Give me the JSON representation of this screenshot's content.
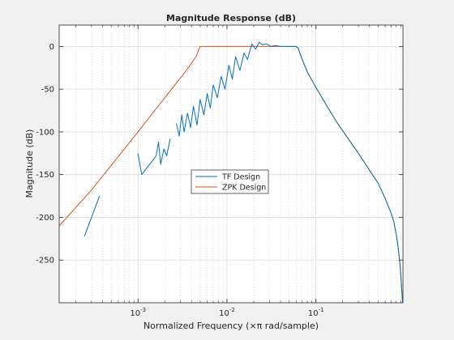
{
  "chart_data": {
    "type": "line",
    "title": "Magnitude Response (dB)",
    "xlabel": "Normalized Frequency (×π rad/sample)",
    "ylabel": "Magnitude (dB)",
    "xscale": "log",
    "xlim": [
      0.00013,
      0.95
    ],
    "ylim": [
      -300,
      25
    ],
    "grid": true,
    "minor_grid": true,
    "legend_placement": "center",
    "x_ticks": [
      {
        "value": 0.001,
        "label": "10^-3"
      },
      {
        "value": 0.01,
        "label": "10^-2"
      },
      {
        "value": 0.1,
        "label": "10^-1"
      }
    ],
    "y_ticks": [
      0,
      -50,
      -100,
      -150,
      -200,
      -250
    ],
    "series": [
      {
        "name": "TF Design",
        "color": "#0072bd",
        "segments": [
          {
            "x": [
              0.00025,
              0.00037
            ],
            "y": [
              -222,
              -175
            ]
          },
          {
            "x": [
              0.001,
              0.0011,
              0.0012,
              0.00135,
              0.0015,
              0.0016,
              0.0017,
              0.0018,
              0.00195,
              0.0021,
              0.0023
            ],
            "y": [
              -125,
              -150,
              -145,
              -138,
              -132,
              -128,
              -112,
              -138,
              -120,
              -128,
              -108
            ]
          },
          {
            "x": [
              0.0027,
              0.0029,
              0.0031,
              0.0033,
              0.0036,
              0.0039,
              0.0042,
              0.0046,
              0.005,
              0.0055,
              0.006,
              0.0065,
              0.007,
              0.0078,
              0.0086,
              0.0095,
              0.0105,
              0.0115,
              0.0125,
              0.014,
              0.0155,
              0.017,
              0.019,
              0.021,
              0.023,
              0.025,
              0.028,
              0.031,
              0.035,
              0.04,
              0.045,
              0.05,
              0.055,
              0.06
            ],
            "y": [
              -90,
              -105,
              -80,
              -100,
              -78,
              -95,
              -70,
              -92,
              -62,
              -80,
              -55,
              -72,
              -45,
              -60,
              -35,
              -50,
              -22,
              -38,
              -12,
              -28,
              -8,
              -15,
              3,
              -3,
              5,
              2,
              3,
              0,
              1,
              0,
              0,
              0,
              0,
              0
            ]
          },
          {
            "x": [
              0.06,
              0.063,
              0.066,
              0.07,
              0.08,
              0.1,
              0.13,
              0.17,
              0.22,
              0.3,
              0.4,
              0.5,
              0.6,
              0.7,
              0.75,
              0.8,
              0.84,
              0.88,
              0.91,
              0.93,
              0.945
            ],
            "y": [
              0,
              -2,
              -8,
              -15,
              -30,
              -48,
              -68,
              -88,
              -105,
              -125,
              -145,
              -160,
              -178,
              -195,
              -205,
              -220,
              -235,
              -255,
              -275,
              -292,
              -300
            ]
          }
        ]
      },
      {
        "name": "ZPK Design",
        "color": "#d95319",
        "segments": [
          {
            "x": [
              0.00013,
              0.0003,
              0.001,
              0.002,
              0.0035,
              0.0045,
              0.0048,
              0.005,
              0.01,
              0.03,
              0.06,
              0.063,
              0.066,
              0.07,
              0.08,
              0.1,
              0.13,
              0.17,
              0.22,
              0.3,
              0.4,
              0.5,
              0.6,
              0.7,
              0.75,
              0.8,
              0.84,
              0.88,
              0.91,
              0.93,
              0.945
            ],
            "y": [
              -210,
              -168,
              -100,
              -60,
              -28,
              -12,
              -4,
              0,
              0,
              0,
              0,
              -2,
              -8,
              -15,
              -30,
              -48,
              -68,
              -88,
              -105,
              -125,
              -145,
              -160,
              -178,
              -195,
              -205,
              -220,
              -235,
              -255,
              -275,
              -292,
              -300
            ]
          }
        ]
      }
    ]
  }
}
